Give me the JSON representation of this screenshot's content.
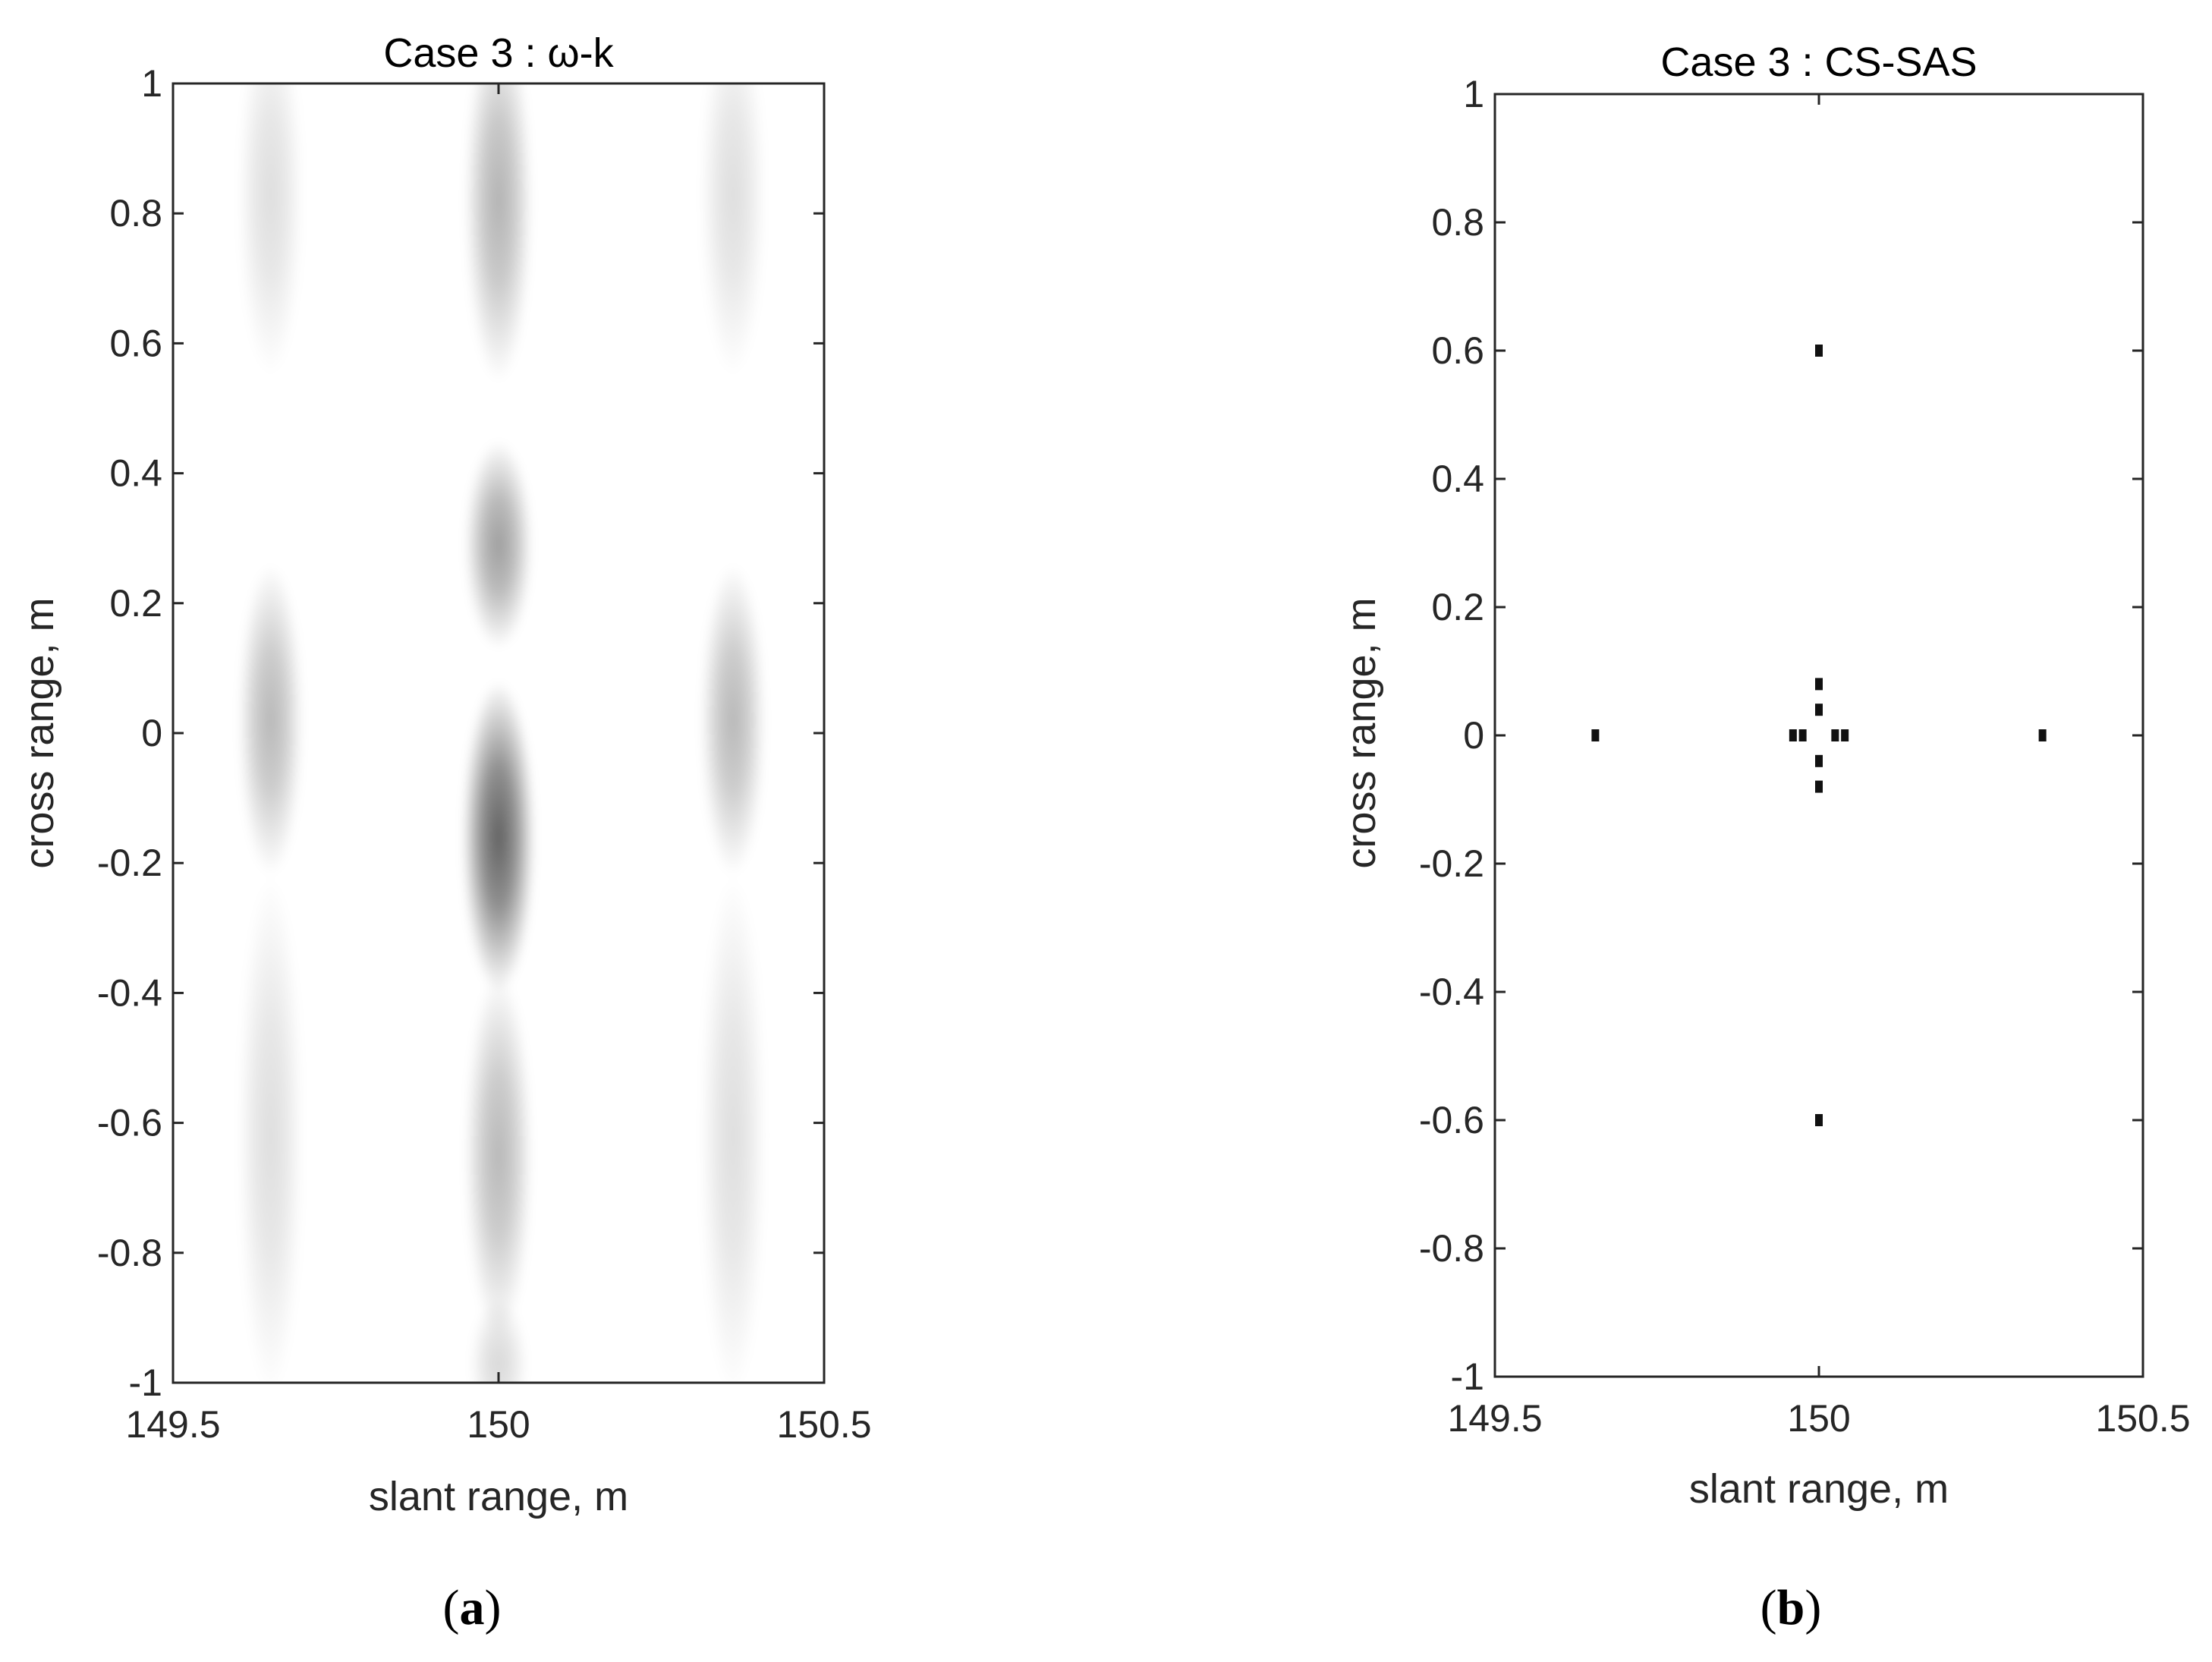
{
  "chart_data": [
    {
      "type": "heatmap",
      "panel_label": "a",
      "title": "Case 3 : ω-k",
      "xlabel": "slant range, m",
      "ylabel": "cross range, m",
      "xlim": [
        149.5,
        150.5
      ],
      "ylim": [
        -1,
        1
      ],
      "xticks": [
        "149.5",
        "150",
        "150.5"
      ],
      "yticks": [
        "1",
        "0.8",
        "0.6",
        "0.4",
        "0.2",
        "0",
        "-0.2",
        "-0.4",
        "-0.6",
        "-0.8",
        "-1"
      ],
      "colormap": "grayscale (white = low, black = high)",
      "blobs": [
        {
          "x": 149.65,
          "y": 0.83,
          "sx": 0.025,
          "sy": 0.14,
          "intensity": 0.13
        },
        {
          "x": 149.65,
          "y": 0.02,
          "sx": 0.025,
          "sy": 0.12,
          "intensity": 0.28
        },
        {
          "x": 149.65,
          "y": -0.62,
          "sx": 0.025,
          "sy": 0.2,
          "intensity": 0.13
        },
        {
          "x": 150.0,
          "y": 0.82,
          "sx": 0.026,
          "sy": 0.14,
          "intensity": 0.3
        },
        {
          "x": 150.0,
          "y": 0.29,
          "sx": 0.026,
          "sy": 0.08,
          "intensity": 0.38
        },
        {
          "x": 150.0,
          "y": -0.16,
          "sx": 0.028,
          "sy": 0.12,
          "intensity": 0.62
        },
        {
          "x": 150.0,
          "y": -0.65,
          "sx": 0.026,
          "sy": 0.14,
          "intensity": 0.28
        },
        {
          "x": 150.0,
          "y": -0.97,
          "sx": 0.022,
          "sy": 0.05,
          "intensity": 0.15
        },
        {
          "x": 150.36,
          "y": 0.83,
          "sx": 0.025,
          "sy": 0.14,
          "intensity": 0.13
        },
        {
          "x": 150.36,
          "y": 0.02,
          "sx": 0.025,
          "sy": 0.12,
          "intensity": 0.28
        },
        {
          "x": 150.36,
          "y": -0.62,
          "sx": 0.025,
          "sy": 0.2,
          "intensity": 0.13
        }
      ]
    },
    {
      "type": "scatter",
      "panel_label": "b",
      "title": "Case 3 : CS-SAS",
      "xlabel": "slant range, m",
      "ylabel": "cross range, m",
      "xlim": [
        149.5,
        150.5
      ],
      "ylim": [
        -1,
        1
      ],
      "xticks": [
        "149.5",
        "150",
        "150.5"
      ],
      "yticks": [
        "1",
        "0.8",
        "0.6",
        "0.4",
        "0.2",
        "0",
        "-0.2",
        "-0.4",
        "-0.6",
        "-0.8",
        "-1"
      ],
      "points": [
        {
          "x": 149.655,
          "y": 0.0
        },
        {
          "x": 150.0,
          "y": 0.6
        },
        {
          "x": 150.0,
          "y": -0.6
        },
        {
          "x": 150.345,
          "y": 0.0
        },
        {
          "x": 150.0,
          "y": 0.08
        },
        {
          "x": 150.0,
          "y": 0.04
        },
        {
          "x": 150.0,
          "y": -0.04
        },
        {
          "x": 150.0,
          "y": -0.08
        },
        {
          "x": 149.96,
          "y": 0.0
        },
        {
          "x": 149.975,
          "y": 0.0
        },
        {
          "x": 150.025,
          "y": 0.0
        },
        {
          "x": 150.04,
          "y": 0.0
        }
      ]
    }
  ]
}
